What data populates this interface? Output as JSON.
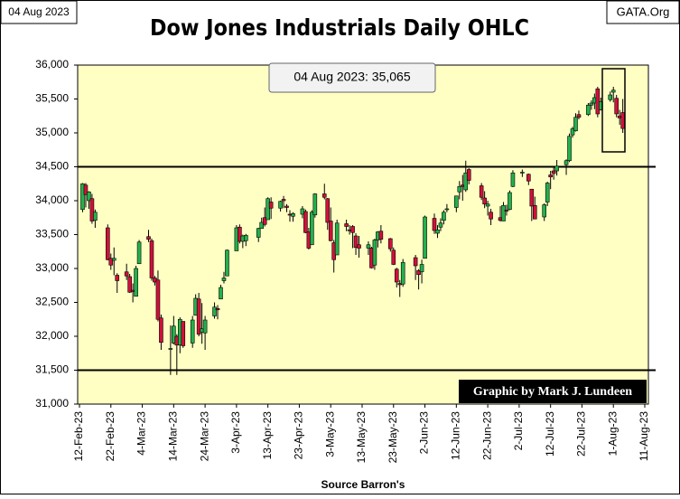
{
  "chart_data": {
    "type": "ohlc",
    "title": "Dow Jones Industrials Daily OHLC",
    "date_label": "04 Aug 2023",
    "source_site": "GATA.Org",
    "annotation": "04 Aug 2023: 35,065",
    "credit": "Graphic by Mark J. Lundeen",
    "x_label": "Source Barron's",
    "up_color": "#22b14c",
    "down_color": "#d0103a",
    "background": "#ffffc4",
    "hlines": [
      34500,
      31500
    ],
    "xlim": [
      "2023-02-12",
      "2023-08-11"
    ],
    "xticks": [
      {
        "value": "2023-02-12",
        "label": "12-Feb-23"
      },
      {
        "value": "2023-02-22",
        "label": "22-Feb-23"
      },
      {
        "value": "2023-03-04",
        "label": "4-Mar-23"
      },
      {
        "value": "2023-03-14",
        "label": "14-Mar-23"
      },
      {
        "value": "2023-03-24",
        "label": "24-Mar-23"
      },
      {
        "value": "2023-04-03",
        "label": "3-Apr-23"
      },
      {
        "value": "2023-04-13",
        "label": "13-Apr-23"
      },
      {
        "value": "2023-04-23",
        "label": "23-Apr-23"
      },
      {
        "value": "2023-05-03",
        "label": "3-May-23"
      },
      {
        "value": "2023-05-13",
        "label": "13-May-23"
      },
      {
        "value": "2023-05-23",
        "label": "23-May-23"
      },
      {
        "value": "2023-06-02",
        "label": "2-Jun-23"
      },
      {
        "value": "2023-06-12",
        "label": "12-Jun-23"
      },
      {
        "value": "2023-06-22",
        "label": "22-Jun-23"
      },
      {
        "value": "2023-07-02",
        "label": "2-Jul-23"
      },
      {
        "value": "2023-07-12",
        "label": "12-Jul-23"
      },
      {
        "value": "2023-07-22",
        "label": "22-Jul-23"
      },
      {
        "value": "2023-08-01",
        "label": "1-Aug-23"
      },
      {
        "value": "2023-08-11",
        "label": "11-Aug-23"
      }
    ],
    "ylim": [
      31000,
      36000
    ],
    "yticks": [
      {
        "value": 31000,
        "label": "31,000"
      },
      {
        "value": 31500,
        "label": "31,500"
      },
      {
        "value": 32000,
        "label": "32,000"
      },
      {
        "value": 32500,
        "label": "32,500"
      },
      {
        "value": 33000,
        "label": "33,000"
      },
      {
        "value": 33500,
        "label": "33,500"
      },
      {
        "value": 34000,
        "label": "34,000"
      },
      {
        "value": 34500,
        "label": "34,500"
      },
      {
        "value": 35000,
        "label": "35,000"
      },
      {
        "value": 35500,
        "label": "35,500"
      },
      {
        "value": 36000,
        "label": "36,000"
      }
    ],
    "x": [
      "2023-02-13",
      "2023-02-14",
      "2023-02-15",
      "2023-02-16",
      "2023-02-17",
      "2023-02-21",
      "2023-02-22",
      "2023-02-23",
      "2023-02-24",
      "2023-02-27",
      "2023-02-28",
      "2023-03-01",
      "2023-03-02",
      "2023-03-03",
      "2023-03-06",
      "2023-03-07",
      "2023-03-08",
      "2023-03-09",
      "2023-03-10",
      "2023-03-13",
      "2023-03-14",
      "2023-03-15",
      "2023-03-16",
      "2023-03-17",
      "2023-03-20",
      "2023-03-21",
      "2023-03-22",
      "2023-03-23",
      "2023-03-24",
      "2023-03-27",
      "2023-03-28",
      "2023-03-29",
      "2023-03-30",
      "2023-03-31",
      "2023-04-03",
      "2023-04-04",
      "2023-04-05",
      "2023-04-06",
      "2023-04-10",
      "2023-04-11",
      "2023-04-12",
      "2023-04-13",
      "2023-04-14",
      "2023-04-17",
      "2023-04-18",
      "2023-04-19",
      "2023-04-20",
      "2023-04-21",
      "2023-04-24",
      "2023-04-25",
      "2023-04-26",
      "2023-04-27",
      "2023-04-28",
      "2023-05-01",
      "2023-05-02",
      "2023-05-03",
      "2023-05-04",
      "2023-05-05",
      "2023-05-08",
      "2023-05-09",
      "2023-05-10",
      "2023-05-11",
      "2023-05-12",
      "2023-05-15",
      "2023-05-16",
      "2023-05-17",
      "2023-05-18",
      "2023-05-19",
      "2023-05-22",
      "2023-05-23",
      "2023-05-24",
      "2023-05-25",
      "2023-05-26",
      "2023-05-30",
      "2023-05-31",
      "2023-06-01",
      "2023-06-02",
      "2023-06-05",
      "2023-06-06",
      "2023-06-07",
      "2023-06-08",
      "2023-06-09",
      "2023-06-12",
      "2023-06-13",
      "2023-06-14",
      "2023-06-15",
      "2023-06-16",
      "2023-06-20",
      "2023-06-21",
      "2023-06-22",
      "2023-06-23",
      "2023-06-26",
      "2023-06-27",
      "2023-06-28",
      "2023-06-29",
      "2023-06-30",
      "2023-07-03",
      "2023-07-05",
      "2023-07-06",
      "2023-07-07",
      "2023-07-10",
      "2023-07-11",
      "2023-07-12",
      "2023-07-13",
      "2023-07-14",
      "2023-07-17",
      "2023-07-18",
      "2023-07-19",
      "2023-07-20",
      "2023-07-21",
      "2023-07-24",
      "2023-07-25",
      "2023-07-26",
      "2023-07-27",
      "2023-07-28",
      "2023-07-31",
      "2023-08-01",
      "2023-08-02",
      "2023-08-03",
      "2023-08-04"
    ],
    "open": [
      33870,
      34230,
      34000,
      34030,
      33710,
      33600,
      33150,
      33120,
      32900,
      32950,
      32880,
      32680,
      32590,
      33070,
      33470,
      33410,
      32860,
      32830,
      32270,
      31820,
      31900,
      32000,
      31870,
      32220,
      31900,
      32310,
      32550,
      32060,
      32050,
      32300,
      32410,
      32550,
      32820,
      32890,
      33260,
      33610,
      33400,
      33410,
      33460,
      33590,
      33750,
      33720,
      33980,
      33890,
      34020,
      33920,
      33800,
      33770,
      33800,
      33840,
      33540,
      33350,
      33790,
      34100,
      34030,
      33700,
      33380,
      33200,
      33660,
      33570,
      33620,
      33480,
      33350,
      33300,
      33300,
      33050,
      33420,
      33550,
      33440,
      33270,
      32990,
      32780,
      32770,
      33160,
      32970,
      32950,
      33150,
      33740,
      33520,
      33610,
      33710,
      33880,
      33900,
      34130,
      34230,
      34160,
      34460,
      34220,
      34040,
      33920,
      33830,
      33750,
      33700,
      33860,
      33870,
      34210,
      34420,
      34390,
      34170,
      33930,
      33760,
      33980,
      34380,
      34440,
      34440,
      34530,
      34590,
      34970,
      35030,
      35270,
      35270,
      35410,
      35440,
      35650,
      35340,
      35490,
      35600,
      35510,
      35250,
      35300
    ],
    "high": [
      34260,
      34260,
      34140,
      34100,
      33870,
      33650,
      33220,
      33310,
      32930,
      33070,
      32920,
      32780,
      33040,
      33420,
      33570,
      33440,
      32890,
      32970,
      32320,
      32160,
      32300,
      32030,
      32280,
      32220,
      32300,
      32620,
      32640,
      32490,
      32300,
      32500,
      32460,
      32760,
      32950,
      33280,
      33640,
      33650,
      33500,
      33510,
      33600,
      33750,
      33900,
      34050,
      34050,
      34000,
      34070,
      33950,
      33860,
      33830,
      33920,
      33870,
      33600,
      33860,
      34110,
      34250,
      34040,
      33900,
      33420,
      33720,
      33720,
      33640,
      33640,
      33520,
      33480,
      33400,
      33320,
      33440,
      33550,
      33640,
      33450,
      33310,
      33010,
      32830,
      33140,
      33200,
      32990,
      33130,
      33780,
      33810,
      33640,
      33740,
      33860,
      33950,
      34070,
      34290,
      34380,
      34590,
      34480,
      34260,
      34140,
      34000,
      33880,
      33920,
      33980,
      33940,
      34150,
      34450,
      34460,
      34400,
      34170,
      34060,
      33960,
      34280,
      34440,
      34490,
      34600,
      34610,
      34990,
      35090,
      35290,
      35330,
      35440,
      35480,
      35580,
      35680,
      35520,
      35610,
      35680,
      35560,
      35340,
      35500
    ],
    "low": [
      33830,
      33900,
      33880,
      33660,
      33600,
      33120,
      32980,
      32900,
      32640,
      32830,
      32640,
      32500,
      32590,
      33070,
      33390,
      32820,
      32750,
      32220,
      31800,
      31430,
      31880,
      31430,
      31750,
      31830,
      31830,
      32310,
      32000,
      31890,
      31800,
      32260,
      32250,
      32550,
      32780,
      32890,
      33260,
      33370,
      33300,
      33330,
      33390,
      33590,
      33620,
      33720,
      33730,
      33840,
      33890,
      33830,
      33690,
      33690,
      33740,
      33520,
      33280,
      33350,
      33750,
      34020,
      33570,
      33400,
      32940,
      33200,
      33550,
      33500,
      33300,
      33200,
      33160,
      33200,
      33000,
      32980,
      33310,
      33370,
      33250,
      33050,
      32720,
      32580,
      32730,
      32830,
      32690,
      32780,
      33150,
      33510,
      33450,
      33550,
      33650,
      33830,
      33830,
      34020,
      34000,
      34130,
      34240,
      34010,
      33890,
      33780,
      33640,
      33690,
      33700,
      33780,
      33860,
      34200,
      34350,
      34230,
      33700,
      33730,
      33700,
      33920,
      34170,
      34310,
      34370,
      34380,
      34570,
      34930,
      35020,
      35200,
      35250,
      35340,
      35350,
      35230,
      35330,
      35460,
      35450,
      35230,
      35120,
      35000
    ],
    "close": [
      34250,
      34090,
      34130,
      33700,
      33830,
      33130,
      33050,
      33150,
      32820,
      32890,
      32650,
      32660,
      33000,
      33390,
      33430,
      32860,
      32800,
      32250,
      31910,
      31820,
      32150,
      31870,
      32250,
      31860,
      32240,
      32560,
      32030,
      32110,
      32240,
      32430,
      32390,
      32720,
      32860,
      33270,
      33600,
      33400,
      33480,
      33490,
      33590,
      33680,
      33650,
      34030,
      33890,
      33990,
      34000,
      33900,
      33790,
      33810,
      33880,
      33530,
      33300,
      33830,
      34100,
      34050,
      33680,
      33410,
      33130,
      33670,
      33620,
      33560,
      33530,
      33310,
      33300,
      33350,
      33010,
      33420,
      33540,
      33430,
      33290,
      33060,
      32800,
      32760,
      33090,
      33040,
      32910,
      33060,
      33760,
      33560,
      33570,
      33670,
      33830,
      33880,
      34070,
      34210,
      34210,
      34410,
      34300,
      34050,
      33950,
      33950,
      33730,
      33710,
      33930,
      33850,
      34120,
      34410,
      34420,
      34290,
      33920,
      33730,
      33940,
      34260,
      34350,
      34400,
      34510,
      34590,
      34950,
      35060,
      35230,
      35230,
      35410,
      35440,
      35520,
      35280,
      35460,
      35560,
      35630,
      35280,
      35220,
      35065
    ]
  }
}
